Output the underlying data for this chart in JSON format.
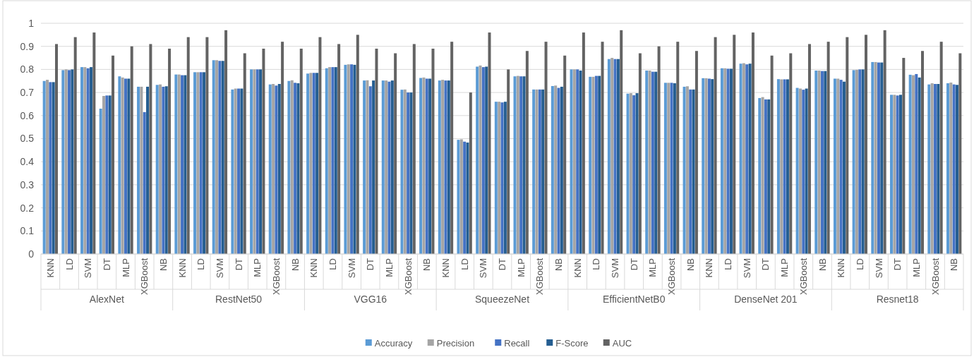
{
  "chart_data": {
    "type": "bar",
    "categories": [
      "KNN",
      "LD",
      "SVM",
      "DT",
      "MLP",
      "XGBoost",
      "NB",
      "KNN",
      "LD",
      "SVM",
      "DT",
      "MLP",
      "XGBoost",
      "NB",
      "KNN",
      "LD",
      "SVM",
      "DT",
      "MLP",
      "XGBoost",
      "NB",
      "KNN",
      "LD",
      "SVM",
      "DT",
      "MLP",
      "XGBoost",
      "NB",
      "KNN",
      "LD",
      "SVM",
      "DT",
      "MLP",
      "XGBoost",
      "NB",
      "KNN",
      "LD",
      "SVM",
      "DT",
      "MLP",
      "XGBoost",
      "NB",
      "KNN",
      "LD",
      "SVM",
      "DT",
      "MLP",
      "XGBoost",
      "NB"
    ],
    "annotations": [
      "AlexNet",
      "RestNet50",
      "VGG16",
      "SqueezeNet",
      "EfficientNetB0",
      "DenseNet 201",
      "Resnet18"
    ],
    "series": [
      {
        "name": "Accuracy",
        "color": "#5b9bd5",
        "values": [
          0.75,
          0.797,
          0.81,
          0.63,
          0.77,
          0.725,
          0.733,
          0.778,
          0.788,
          0.84,
          0.713,
          0.8,
          0.735,
          0.75,
          0.782,
          0.805,
          0.82,
          0.752,
          0.752,
          0.712,
          0.763,
          0.752,
          0.495,
          0.812,
          0.66,
          0.77,
          0.713,
          0.728,
          0.8,
          0.768,
          0.845,
          0.695,
          0.795,
          0.742,
          0.725,
          0.762,
          0.805,
          0.825,
          0.676,
          0.758,
          0.72,
          0.795,
          0.76,
          0.797,
          0.832,
          0.69,
          0.777,
          0.735,
          0.74
        ]
      },
      {
        "name": "Precision",
        "color": "#a5a5a5",
        "values": [
          0.755,
          0.8,
          0.81,
          0.685,
          0.765,
          0.725,
          0.735,
          0.778,
          0.788,
          0.84,
          0.717,
          0.8,
          0.737,
          0.753,
          0.785,
          0.81,
          0.822,
          0.753,
          0.752,
          0.713,
          0.765,
          0.755,
          0.497,
          0.817,
          0.66,
          0.772,
          0.713,
          0.73,
          0.8,
          0.768,
          0.85,
          0.697,
          0.795,
          0.742,
          0.727,
          0.762,
          0.805,
          0.827,
          0.68,
          0.757,
          0.717,
          0.795,
          0.76,
          0.798,
          0.832,
          0.69,
          0.775,
          0.74,
          0.743
        ]
      },
      {
        "name": "Recall",
        "color": "#4472c4",
        "values": [
          0.745,
          0.797,
          0.805,
          0.687,
          0.76,
          0.615,
          0.725,
          0.775,
          0.788,
          0.837,
          0.717,
          0.8,
          0.73,
          0.742,
          0.785,
          0.81,
          0.822,
          0.727,
          0.747,
          0.7,
          0.76,
          0.752,
          0.487,
          0.81,
          0.657,
          0.77,
          0.713,
          0.72,
          0.8,
          0.772,
          0.845,
          0.688,
          0.79,
          0.742,
          0.713,
          0.76,
          0.803,
          0.822,
          0.67,
          0.757,
          0.712,
          0.793,
          0.755,
          0.8,
          0.83,
          0.687,
          0.78,
          0.737,
          0.735
        ]
      },
      {
        "name": "F-Score",
        "color": "#255e91",
        "values": [
          0.745,
          0.8,
          0.81,
          0.687,
          0.76,
          0.725,
          0.727,
          0.775,
          0.788,
          0.837,
          0.717,
          0.8,
          0.737,
          0.74,
          0.785,
          0.81,
          0.82,
          0.752,
          0.752,
          0.7,
          0.76,
          0.752,
          0.483,
          0.812,
          0.66,
          0.77,
          0.713,
          0.725,
          0.795,
          0.772,
          0.845,
          0.697,
          0.79,
          0.74,
          0.713,
          0.758,
          0.803,
          0.825,
          0.67,
          0.757,
          0.717,
          0.793,
          0.747,
          0.8,
          0.83,
          0.69,
          0.765,
          0.737,
          0.733
        ]
      },
      {
        "name": "AUC",
        "color": "#636363",
        "values": [
          0.91,
          0.94,
          0.96,
          0.86,
          0.9,
          0.91,
          0.89,
          0.94,
          0.94,
          0.97,
          0.87,
          0.89,
          0.92,
          0.89,
          0.94,
          0.91,
          0.95,
          0.89,
          0.87,
          0.91,
          0.89,
          0.92,
          0.7,
          0.96,
          0.8,
          0.88,
          0.92,
          0.86,
          0.96,
          0.92,
          0.97,
          0.87,
          0.9,
          0.92,
          0.88,
          0.94,
          0.95,
          0.96,
          0.86,
          0.87,
          0.91,
          0.92,
          0.94,
          0.95,
          0.97,
          0.85,
          0.88,
          0.92,
          0.87
        ]
      }
    ],
    "ylim": [
      0,
      1
    ],
    "yticks": [
      0,
      {
        "value": 0.1,
        "label": "0.1"
      },
      {
        "value": 0.2,
        "label": "0.2"
      },
      {
        "value": 0.3,
        "label": "0.3"
      },
      {
        "value": 0.4,
        "label": "0.4"
      },
      {
        "value": 0.5,
        "label": "0.5"
      },
      {
        "value": 0.6,
        "label": "0.6"
      },
      {
        "value": 0.7,
        "label": "0.7"
      },
      {
        "value": 0.8,
        "label": "0.8"
      },
      {
        "value": 0.9,
        "label": "0.9"
      },
      1
    ],
    "grid": "y",
    "legend": "bottom"
  }
}
